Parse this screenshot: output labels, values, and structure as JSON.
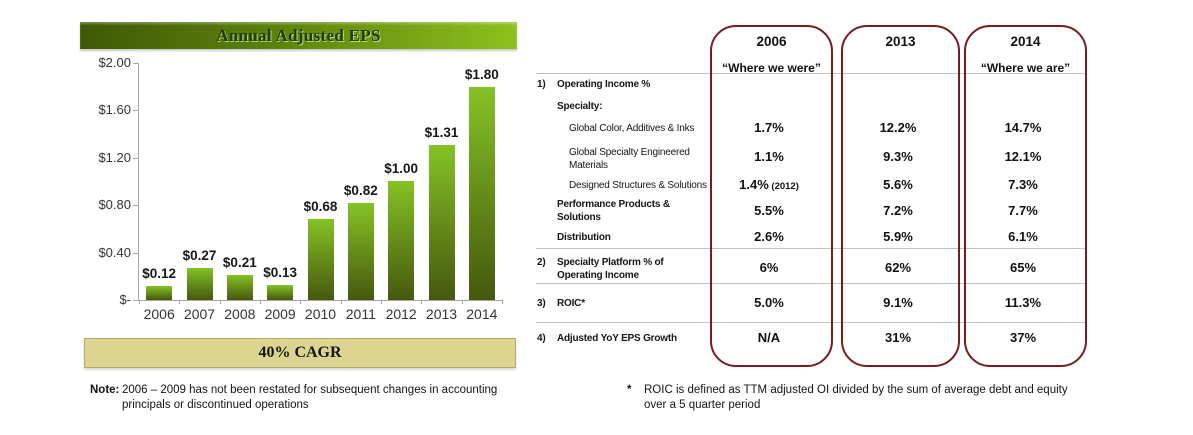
{
  "chart_data": {
    "type": "bar",
    "title": "Annual Adjusted EPS",
    "categories": [
      "2006",
      "2007",
      "2008",
      "2009",
      "2010",
      "2011",
      "2012",
      "2013",
      "2014"
    ],
    "values": [
      0.12,
      0.27,
      0.21,
      0.13,
      0.68,
      0.82,
      1.0,
      1.31,
      1.8
    ],
    "data_labels": [
      "$0.12",
      "$0.27",
      "$0.21",
      "$0.13",
      "$0.68",
      "$0.82",
      "$1.00",
      "$1.31",
      "$1.80"
    ],
    "y_ticks": [
      {
        "label": "$2.00",
        "value": 2.0
      },
      {
        "label": "$1.60",
        "value": 1.6
      },
      {
        "label": "$1.20",
        "value": 1.2
      },
      {
        "label": "$0.80",
        "value": 0.8
      },
      {
        "label": "$0.40",
        "value": 0.4
      },
      {
        "label": "$-",
        "value": 0.0
      }
    ],
    "ylim": [
      0,
      2
    ],
    "xlabel": "",
    "ylabel": "",
    "grid": false,
    "legend": null,
    "cagr_banner": "40% CAGR"
  },
  "table": {
    "columns": [
      {
        "year": "2006",
        "subtitle": "“Where we were”"
      },
      {
        "year": "2013",
        "subtitle": ""
      },
      {
        "year": "2014",
        "subtitle": "“Where we are”"
      }
    ],
    "rows": [
      {
        "num": "1)",
        "label_lines": [
          "Operating Income %"
        ],
        "bold": true,
        "indent": 0,
        "values": null
      },
      {
        "num": "",
        "label_lines": [
          "Specialty:"
        ],
        "bold": true,
        "indent": 1,
        "values": null
      },
      {
        "num": "",
        "label_lines": [
          "Global Color, Additives & Inks"
        ],
        "bold": false,
        "indent": 2,
        "values": [
          "1.7%",
          "12.2%",
          "14.7%"
        ]
      },
      {
        "num": "",
        "label_lines": [
          "Global Specialty Engineered",
          "Materials"
        ],
        "bold": false,
        "indent": 2,
        "values": [
          "1.1%",
          "9.3%",
          "12.1%"
        ]
      },
      {
        "num": "",
        "label_lines": [
          "Designed Structures & Solutions"
        ],
        "bold": false,
        "indent": 2,
        "values": [
          "1.4%",
          "5.6%",
          "7.3%"
        ],
        "value_notes": [
          "(2012)",
          "",
          ""
        ]
      },
      {
        "num": "",
        "label_lines": [
          "Performance Products &",
          "Solutions"
        ],
        "bold": true,
        "indent": 1,
        "values": [
          "5.5%",
          "7.2%",
          "7.7%"
        ]
      },
      {
        "num": "",
        "label_lines": [
          "Distribution"
        ],
        "bold": true,
        "indent": 1,
        "values": [
          "2.6%",
          "5.9%",
          "6.1%"
        ]
      },
      {
        "num": "2)",
        "label_lines": [
          "Specialty Platform % of",
          "Operating Income"
        ],
        "bold": true,
        "indent": 0,
        "values": [
          "6%",
          "62%",
          "65%"
        ]
      },
      {
        "num": "3)",
        "label_lines": [
          "ROIC*"
        ],
        "bold": true,
        "indent": 0,
        "values": [
          "5.0%",
          "9.1%",
          "11.3%"
        ]
      },
      {
        "num": "4)",
        "label_lines": [
          "Adjusted YoY EPS Growth"
        ],
        "bold": true,
        "indent": 0,
        "values": [
          "N/A",
          "31%",
          "37%"
        ]
      }
    ]
  },
  "notes": {
    "left_label": "Note:",
    "left_lines": [
      "2006 – 2009 has not been restated for subsequent changes in accounting",
      "principals or discontinued operations"
    ],
    "right_marker": "*",
    "right_lines": [
      "ROIC is defined as TTM adjusted OI divided by the sum of average debt and equity",
      "over a 5 quarter period"
    ]
  },
  "colors": {
    "banner_green_dark": "#3e5a05",
    "banner_green_light": "#8cc21d",
    "bar_top": "#85c226",
    "bar_bottom": "#46580e",
    "cagr_beige": "#ddd492",
    "column_border_maroon": "#7b1b1e",
    "separator_gray": "#c9c0c0"
  }
}
